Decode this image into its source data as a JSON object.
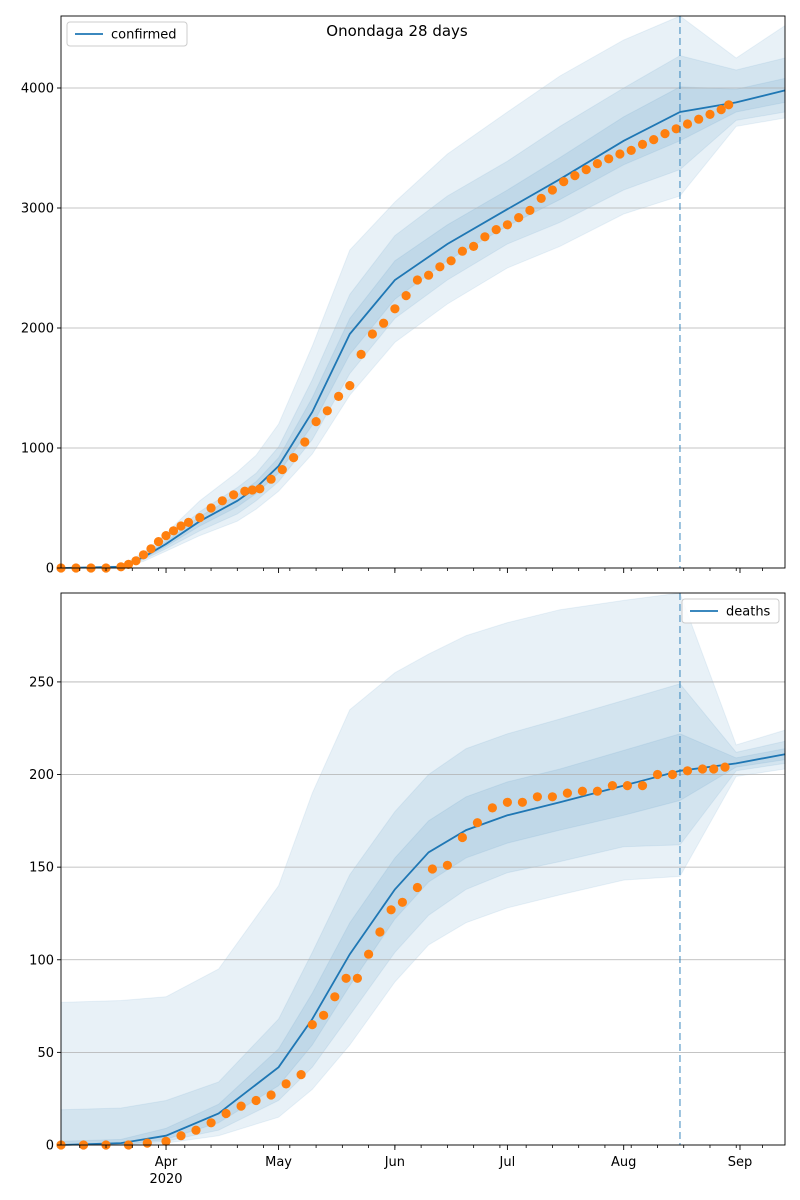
{
  "figure_title": "Onondaga 28 days",
  "colors": {
    "model_line": "#1f77b4",
    "band": "#1f77b4",
    "observed": "#ff7f0e",
    "grid": "#b0b0b0",
    "cutoff": "#1f77b4"
  },
  "x_axis": {
    "range": [
      "2020-03-04",
      "2020-09-13"
    ],
    "month_ticks": [
      {
        "date": "2020-04-01",
        "label": "Apr",
        "sublabel": "2020"
      },
      {
        "date": "2020-05-01",
        "label": "May",
        "sublabel": ""
      },
      {
        "date": "2020-06-01",
        "label": "Jun",
        "sublabel": ""
      },
      {
        "date": "2020-07-01",
        "label": "Jul",
        "sublabel": ""
      },
      {
        "date": "2020-08-01",
        "label": "Aug",
        "sublabel": ""
      },
      {
        "date": "2020-09-01",
        "label": "Sep",
        "sublabel": ""
      }
    ],
    "cutoff_date": "2020-08-16"
  },
  "chart_data": [
    {
      "type": "line",
      "legend_label": "confirmed",
      "legend_position": "top-left",
      "ylim": [
        0,
        4600
      ],
      "yticks": [
        0,
        1000,
        2000,
        3000,
        4000
      ],
      "grid": "horizontal",
      "model": {
        "dates": [
          "2020-03-04",
          "2020-03-20",
          "2020-03-26",
          "2020-04-01",
          "2020-04-10",
          "2020-04-20",
          "2020-04-25",
          "2020-05-01",
          "2020-05-10",
          "2020-05-20",
          "2020-06-01",
          "2020-06-15",
          "2020-07-01",
          "2020-07-15",
          "2020-08-01",
          "2020-08-16",
          "2020-08-31",
          "2020-09-13"
        ],
        "median": [
          0,
          10,
          90,
          200,
          390,
          560,
          670,
          850,
          1300,
          1950,
          2400,
          2700,
          2990,
          3240,
          3560,
          3800,
          3880,
          3980
        ],
        "band_50_low": [
          0,
          8,
          80,
          180,
          350,
          510,
          620,
          790,
          1190,
          1780,
          2240,
          2560,
          2850,
          3070,
          3360,
          3560,
          3800,
          3880
        ],
        "band_50_high": [
          0,
          12,
          100,
          220,
          430,
          610,
          720,
          920,
          1420,
          2080,
          2560,
          2860,
          3150,
          3420,
          3760,
          4010,
          3990,
          4080
        ],
        "band_80_low": [
          0,
          6,
          70,
          160,
          310,
          450,
          560,
          720,
          1070,
          1620,
          2080,
          2400,
          2700,
          2880,
          3150,
          3320,
          3730,
          3800
        ],
        "band_80_high": [
          0,
          14,
          110,
          240,
          470,
          670,
          790,
          1010,
          1570,
          2280,
          2770,
          3100,
          3390,
          3680,
          4000,
          4270,
          4150,
          4250
        ],
        "band_95_low": [
          0,
          4,
          55,
          140,
          270,
          390,
          490,
          640,
          950,
          1440,
          1880,
          2200,
          2500,
          2680,
          2950,
          3100,
          3680,
          3750
        ],
        "band_95_high": [
          0,
          18,
          130,
          290,
          560,
          800,
          940,
          1200,
          1850,
          2650,
          3050,
          3450,
          3800,
          4100,
          4400,
          4600,
          4250,
          4520
        ]
      },
      "observed": {
        "dates": [
          "2020-03-04",
          "2020-03-08",
          "2020-03-12",
          "2020-03-16",
          "2020-03-20",
          "2020-03-22",
          "2020-03-24",
          "2020-03-26",
          "2020-03-28",
          "2020-03-30",
          "2020-04-01",
          "2020-04-03",
          "2020-04-05",
          "2020-04-07",
          "2020-04-10",
          "2020-04-13",
          "2020-04-16",
          "2020-04-19",
          "2020-04-22",
          "2020-04-24",
          "2020-04-26",
          "2020-04-29",
          "2020-05-02",
          "2020-05-05",
          "2020-05-08",
          "2020-05-11",
          "2020-05-14",
          "2020-05-17",
          "2020-05-20",
          "2020-05-23",
          "2020-05-26",
          "2020-05-29",
          "2020-06-01",
          "2020-06-04",
          "2020-06-07",
          "2020-06-10",
          "2020-06-13",
          "2020-06-16",
          "2020-06-19",
          "2020-06-22",
          "2020-06-25",
          "2020-06-28",
          "2020-07-01",
          "2020-07-04",
          "2020-07-07",
          "2020-07-10",
          "2020-07-13",
          "2020-07-16",
          "2020-07-19",
          "2020-07-22",
          "2020-07-25",
          "2020-07-28",
          "2020-07-31",
          "2020-08-03",
          "2020-08-06",
          "2020-08-09",
          "2020-08-12",
          "2020-08-15",
          "2020-08-18",
          "2020-08-21",
          "2020-08-24",
          "2020-08-27",
          "2020-08-29"
        ],
        "values": [
          0,
          0,
          0,
          0,
          10,
          30,
          60,
          110,
          160,
          220,
          270,
          310,
          350,
          380,
          420,
          500,
          560,
          610,
          640,
          650,
          660,
          740,
          820,
          920,
          1050,
          1220,
          1310,
          1430,
          1520,
          1780,
          1950,
          2040,
          2160,
          2270,
          2400,
          2440,
          2510,
          2560,
          2640,
          2680,
          2760,
          2820,
          2860,
          2920,
          2980,
          3080,
          3150,
          3220,
          3270,
          3320,
          3370,
          3410,
          3450,
          3480,
          3530,
          3570,
          3620,
          3660,
          3700,
          3740,
          3780,
          3820,
          3860
        ]
      }
    },
    {
      "type": "line",
      "legend_label": "deaths",
      "legend_position": "top-right",
      "ylim": [
        0,
        298
      ],
      "yticks": [
        0,
        50,
        100,
        150,
        200,
        250
      ],
      "grid": "horizontal",
      "model": {
        "dates": [
          "2020-03-04",
          "2020-03-20",
          "2020-04-01",
          "2020-04-15",
          "2020-05-01",
          "2020-05-10",
          "2020-05-20",
          "2020-06-01",
          "2020-06-10",
          "2020-06-20",
          "2020-07-01",
          "2020-07-15",
          "2020-08-01",
          "2020-08-16",
          "2020-08-31",
          "2020-09-13"
        ],
        "median": [
          0,
          1,
          5,
          17,
          42,
          68,
          103,
          138,
          158,
          170,
          178,
          185,
          194,
          202,
          206,
          211
        ],
        "band_50_low": [
          0,
          0,
          3,
          12,
          32,
          54,
          86,
          122,
          142,
          155,
          163,
          170,
          178,
          186,
          204,
          208
        ],
        "band_50_high": [
          2,
          3,
          9,
          22,
          52,
          82,
          120,
          155,
          175,
          188,
          196,
          203,
          213,
          222,
          209,
          214
        ],
        "band_80_low": [
          0,
          0,
          2,
          8,
          24,
          42,
          70,
          104,
          124,
          138,
          147,
          153,
          161,
          162,
          202,
          206
        ],
        "band_80_high": [
          19,
          20,
          24,
          34,
          68,
          104,
          146,
          180,
          200,
          214,
          222,
          230,
          240,
          249,
          212,
          218
        ],
        "band_95_low": [
          0,
          0,
          1,
          5,
          15,
          30,
          54,
          88,
          108,
          120,
          128,
          135,
          143,
          145,
          199,
          203
        ],
        "band_95_high": [
          77,
          78,
          80,
          95,
          140,
          190,
          235,
          255,
          265,
          275,
          282,
          289,
          294,
          298,
          216,
          224
        ]
      },
      "observed": {
        "dates": [
          "2020-03-04",
          "2020-03-10",
          "2020-03-16",
          "2020-03-22",
          "2020-03-27",
          "2020-04-01",
          "2020-04-05",
          "2020-04-09",
          "2020-04-13",
          "2020-04-17",
          "2020-04-21",
          "2020-04-25",
          "2020-04-29",
          "2020-05-03",
          "2020-05-07",
          "2020-05-10",
          "2020-05-13",
          "2020-05-16",
          "2020-05-19",
          "2020-05-22",
          "2020-05-25",
          "2020-05-28",
          "2020-05-31",
          "2020-06-03",
          "2020-06-07",
          "2020-06-11",
          "2020-06-15",
          "2020-06-19",
          "2020-06-23",
          "2020-06-27",
          "2020-07-01",
          "2020-07-05",
          "2020-07-09",
          "2020-07-13",
          "2020-07-17",
          "2020-07-21",
          "2020-07-25",
          "2020-07-29",
          "2020-08-02",
          "2020-08-06",
          "2020-08-10",
          "2020-08-14",
          "2020-08-18",
          "2020-08-22",
          "2020-08-25",
          "2020-08-28"
        ],
        "values": [
          0,
          0,
          0,
          0,
          1,
          2,
          5,
          8,
          12,
          17,
          21,
          24,
          27,
          33,
          38,
          65,
          70,
          80,
          90,
          90,
          103,
          115,
          127,
          131,
          139,
          149,
          151,
          166,
          174,
          182,
          185,
          185,
          188,
          188,
          190,
          191,
          191,
          194,
          194,
          194,
          200,
          200,
          202,
          203,
          203,
          204
        ]
      }
    }
  ]
}
